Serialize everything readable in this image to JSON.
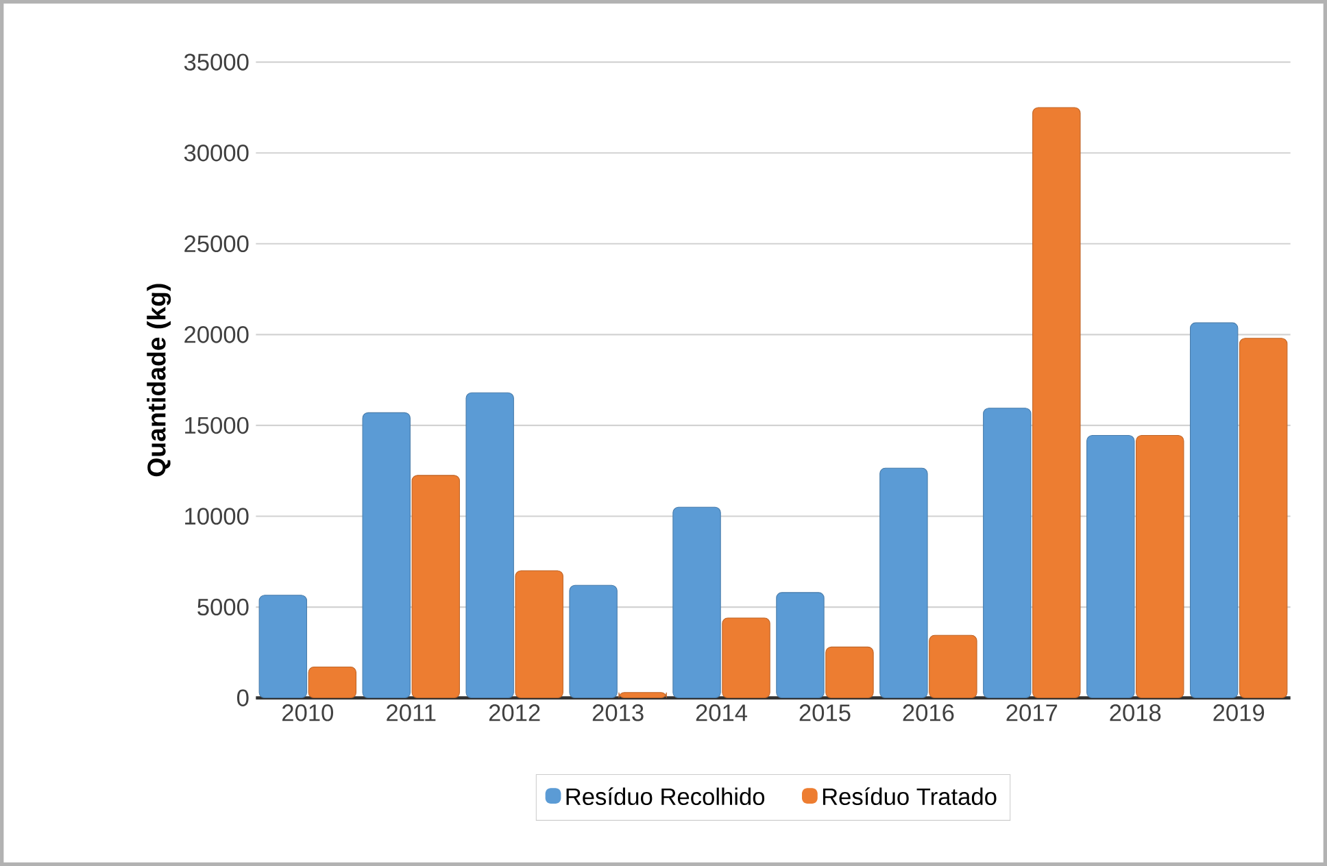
{
  "chart_data": {
    "type": "bar",
    "ylabel": "Quantidade (kg)",
    "categories": [
      "2010",
      "2011",
      "2012",
      "2013",
      "2014",
      "2015",
      "2016",
      "2017",
      "2018",
      "2019"
    ],
    "series": [
      {
        "name": "Resíduo Recolhido",
        "color": "#5b9bd5",
        "values": [
          5650,
          15700,
          16800,
          6200,
          10500,
          5800,
          12650,
          15950,
          14450,
          20650
        ]
      },
      {
        "name": "Resíduo Tratado",
        "color": "#ed7d31",
        "values": [
          1700,
          12250,
          7000,
          300,
          4400,
          2800,
          3450,
          32500,
          14450,
          19800
        ]
      }
    ],
    "ylim": [
      0,
      35000
    ],
    "yticks": [
      0,
      5000,
      10000,
      15000,
      20000,
      25000,
      30000,
      35000
    ],
    "grid": "y",
    "legend": "bottom"
  }
}
